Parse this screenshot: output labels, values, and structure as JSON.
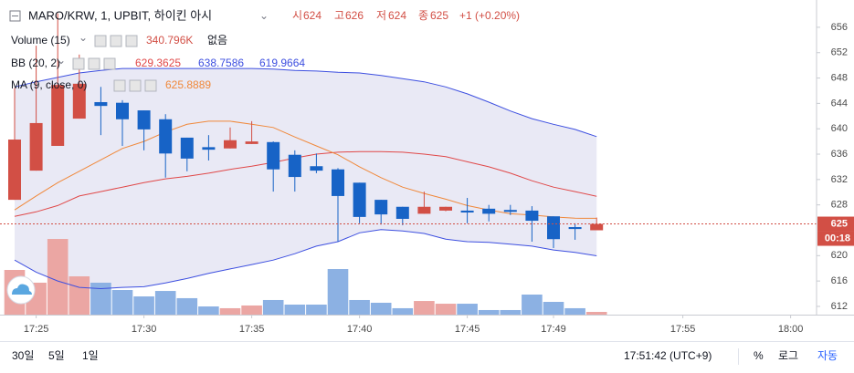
{
  "chart_data": {
    "type": "candlestick",
    "title": "MARO/KRW, 1, UPBIT, 하이킨 아시",
    "ohlc_labels": [
      "시",
      "고",
      "저",
      "종"
    ],
    "change": "+1 (+0.20%)",
    "countdown": "00:18",
    "x": [
      "17:24",
      "17:25",
      "17:26",
      "17:27",
      "17:28",
      "17:29",
      "17:30",
      "17:31",
      "17:32",
      "17:33",
      "17:34",
      "17:35",
      "17:36",
      "17:37",
      "17:38",
      "17:39",
      "17:40",
      "17:41",
      "17:42",
      "17:43",
      "17:44",
      "17:45",
      "17:46",
      "17:47",
      "17:48",
      "17:49",
      "17:50",
      "17:51"
    ],
    "xticks": [
      "17:25",
      "17:30",
      "17:35",
      "17:40",
      "17:45",
      "17:49",
      "17:55",
      "18:00"
    ],
    "ylim": [
      610.7,
      660.3
    ],
    "yticks": [
      612,
      616,
      620,
      628,
      632,
      636,
      640,
      644,
      648,
      652,
      656
    ],
    "up_color": "#d24f45",
    "down_color": "#1763c6",
    "candles": {
      "open": [
        628.8,
        633.4,
        637.3,
        641.6,
        644.2,
        644.1,
        642.9,
        641.5,
        638.6,
        637.1,
        636.9,
        637.6,
        637.9,
        635.9,
        634.1,
        633.6,
        631.5,
        628.8,
        627.7,
        626.6,
        627.1,
        627.1,
        627.4,
        627.2,
        627.1,
        626.2,
        624.5,
        624
      ],
      "high": [
        646.4,
        653.1,
        658.2,
        651.7,
        646.6,
        644.5,
        642.9,
        642.3,
        638.6,
        639.0,
        640.2,
        641.2,
        638.0,
        636.6,
        636.1,
        633.8,
        631.5,
        628.8,
        627.7,
        630.1,
        627.7,
        629.1,
        628.0,
        628.0,
        627.8,
        626.2,
        625.1,
        626
      ],
      "low": [
        628.8,
        633.4,
        637.3,
        641.6,
        639.0,
        637.3,
        636.6,
        632.3,
        633.3,
        635.0,
        636.9,
        637.6,
        630.1,
        630.1,
        633.0,
        622.2,
        625.1,
        624.9,
        624.8,
        626.6,
        627.0,
        625.1,
        625.4,
        626.4,
        622.2,
        621.2,
        622.5,
        624
      ],
      "close": [
        638.3,
        640.9,
        646.9,
        647.1,
        643.6,
        641.5,
        639.9,
        636.1,
        635.3,
        636.7,
        638.2,
        638.0,
        633.6,
        632.4,
        633.4,
        629.4,
        626.1,
        626.5,
        625.8,
        627.7,
        627.7,
        626.8,
        626.6,
        626.9,
        625.5,
        622.6,
        624.2,
        625
      ]
    },
    "volume": {
      "name": "Volume (15)",
      "values": [
        5570000,
        3980000,
        9430000,
        4770000,
        3980000,
        3070000,
        2270000,
        2950000,
        2050000,
        1020000,
        800000,
        1140000,
        1820000,
        1250000,
        1250000,
        5680000,
        1820000,
        1480000,
        800000,
        1700000,
        1360000,
        1360000,
        570000,
        570000,
        2500000,
        1590000,
        800000,
        340796
      ],
      "ylim": [
        0,
        10000000
      ],
      "legend_value": "340.796K",
      "legend_extra": "없음",
      "up_color": "#eba6a3",
      "down_color": "#8cb1e3"
    },
    "bb": {
      "name": "BB (20, 2)",
      "fill": "#e4e4f2",
      "series": [
        {
          "color": "#e04848",
          "values": [
            626.2,
            626.9,
            627.9,
            629.4,
            630.1,
            630.8,
            631.5,
            632.1,
            632.5,
            633.0,
            633.6,
            634.1,
            634.7,
            635.4,
            636.0,
            636.3,
            636.4,
            636.4,
            636.3,
            636.0,
            635.6,
            634.8,
            634.0,
            633.0,
            631.8,
            630.8,
            630.1,
            629.3625
          ]
        },
        {
          "color": "#3d4fe0",
          "values": [
            646.6,
            647.4,
            648.1,
            648.8,
            649.2,
            649.5,
            649.5,
            649.5,
            649.5,
            649.5,
            649.5,
            649.5,
            649.4,
            649.2,
            649.1,
            648.9,
            648.8,
            648.4,
            647.9,
            647.4,
            646.6,
            645.5,
            644.2,
            642.8,
            641.6,
            640.7,
            639.9,
            638.7586
          ]
        },
        {
          "color": "#3d4fe0",
          "values": [
            619.3,
            617.4,
            616.0,
            615.0,
            614.8,
            615.0,
            615.1,
            615.7,
            616.4,
            617.2,
            617.9,
            618.6,
            619.3,
            620.3,
            621.5,
            622.2,
            623.6,
            624.1,
            623.9,
            623.5,
            622.6,
            622.2,
            622.1,
            621.8,
            621.5,
            620.9,
            620.5,
            619.9664
          ]
        }
      ]
    },
    "ma": {
      "name": "MA (9, close, 0)",
      "color": "#f0883a",
      "values": [
        627.2,
        629.4,
        631.5,
        633.3,
        635.1,
        636.9,
        638.0,
        639.5,
        640.7,
        641.2,
        641.2,
        640.7,
        640.2,
        638.7,
        637.3,
        635.9,
        634.0,
        632.3,
        630.8,
        629.8,
        628.9,
        627.9,
        627.2,
        626.6,
        626.4,
        626.1,
        625.9,
        625.8889
      ]
    }
  },
  "toolbar": {
    "ranges": [
      "30일",
      "5일",
      "1일"
    ],
    "clock": "17:51:42 (UTC+9)",
    "buttons": [
      "%",
      "로그",
      "자동"
    ]
  }
}
